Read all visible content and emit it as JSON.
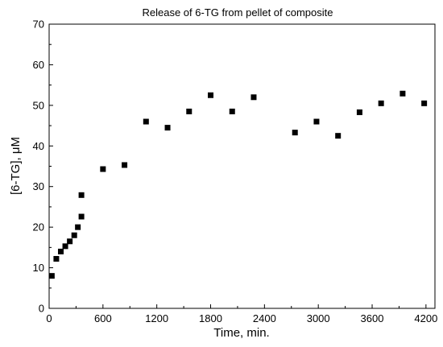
{
  "chart_data": {
    "type": "scatter",
    "title": "Release of 6-TG from pellet of composite",
    "xlabel": "Time, min.",
    "ylabel": "[6-TG], μM",
    "xlim": [
      0,
      4300
    ],
    "ylim": [
      0,
      70
    ],
    "xticks": [
      0,
      600,
      1200,
      1800,
      2400,
      3000,
      3600,
      4200
    ],
    "yticks": [
      0,
      10,
      20,
      30,
      40,
      50,
      60,
      70
    ],
    "grid": false,
    "marker": "square",
    "color": "#000000",
    "series": [
      {
        "points": [
          {
            "x": 30,
            "y": 8.0
          },
          {
            "x": 80,
            "y": 12.2
          },
          {
            "x": 130,
            "y": 14.0
          },
          {
            "x": 180,
            "y": 15.3
          },
          {
            "x": 230,
            "y": 16.5
          },
          {
            "x": 280,
            "y": 18.0
          },
          {
            "x": 320,
            "y": 20.0
          },
          {
            "x": 360,
            "y": 22.6
          },
          {
            "x": 360,
            "y": 27.9
          },
          {
            "x": 600,
            "y": 34.3
          },
          {
            "x": 840,
            "y": 35.3
          },
          {
            "x": 1080,
            "y": 46.0
          },
          {
            "x": 1320,
            "y": 44.5
          },
          {
            "x": 1560,
            "y": 48.5
          },
          {
            "x": 1800,
            "y": 52.5
          },
          {
            "x": 2040,
            "y": 48.5
          },
          {
            "x": 2280,
            "y": 52.0
          },
          {
            "x": 2740,
            "y": 43.3
          },
          {
            "x": 2980,
            "y": 46.0
          },
          {
            "x": 3220,
            "y": 42.5
          },
          {
            "x": 3460,
            "y": 48.3
          },
          {
            "x": 3700,
            "y": 50.5
          },
          {
            "x": 3940,
            "y": 52.9
          },
          {
            "x": 4180,
            "y": 50.5
          }
        ]
      }
    ]
  }
}
